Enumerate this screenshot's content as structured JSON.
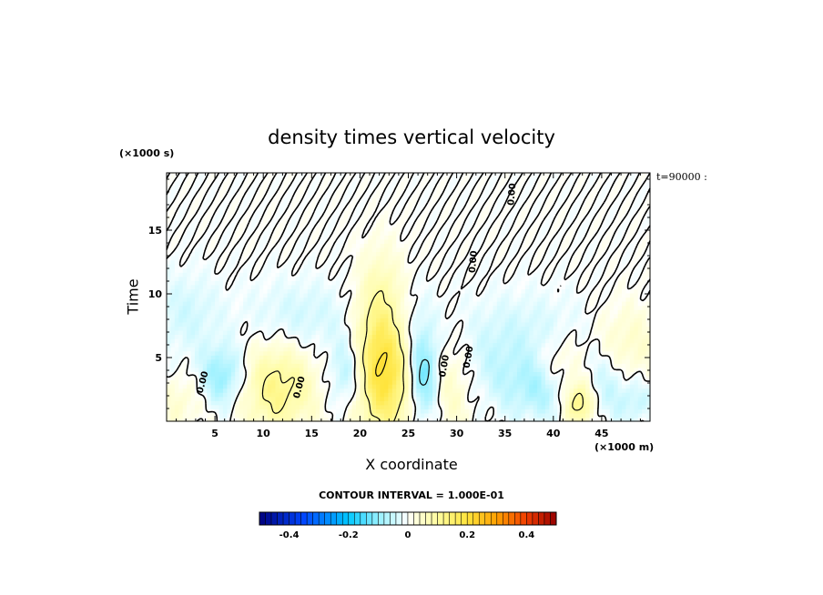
{
  "chart_data": {
    "type": "heatmap",
    "title": "density times vertical velocity",
    "xlabel": "X coordinate",
    "ylabel": "Time",
    "x_unit_label": "(×1000 m)",
    "y_unit_label": "(×1000 s)",
    "time_stamp": "t=90000 :",
    "xlim": [
      0,
      50
    ],
    "ylim": [
      0,
      19.5
    ],
    "x_ticks": [
      "5",
      "10",
      "15",
      "20",
      "25",
      "30",
      "35",
      "40",
      "45"
    ],
    "y_ticks": [
      "5",
      "10",
      "15"
    ],
    "contour_interval_label": "CONTOUR INTERVAL = 1.000E-01",
    "contour_labels": [
      {
        "text": "0.00",
        "x": 4,
        "y": 3.0,
        "angle": 75
      },
      {
        "text": "0.00",
        "x": 14,
        "y": 2.6,
        "angle": 75
      },
      {
        "text": "0.00",
        "x": 29,
        "y": 4.3,
        "angle": 80
      },
      {
        "text": "0.00",
        "x": 31.5,
        "y": 5.0,
        "angle": 80
      },
      {
        "text": "0.00",
        "x": 36,
        "y": 17.8,
        "angle": 85
      },
      {
        "text": "0.00",
        "x": 32,
        "y": 12.5,
        "angle": 85
      }
    ],
    "colorbar": {
      "min": -0.5,
      "max": 0.5,
      "step": 0.02,
      "tick_values": [
        -0.4,
        -0.2,
        0,
        0.2,
        0.4
      ],
      "tick_labels": [
        "-0.4",
        "-0.2",
        "0",
        "0.2",
        "0.4"
      ],
      "colormap": "blue-cyan-white-yellow-red"
    },
    "field_features": [
      {
        "x": 11.5,
        "y": 2.6,
        "sx": 2.6,
        "sy": 2.4,
        "value": 0.12
      },
      {
        "x": 22.5,
        "y": 3.8,
        "sx": 2.2,
        "sy": 3.4,
        "value": 0.2
      },
      {
        "x": 22.2,
        "y": 9.0,
        "sx": 1.6,
        "sy": 3.0,
        "value": 0.08
      },
      {
        "x": 5.8,
        "y": 3.6,
        "sx": 1.6,
        "sy": 1.6,
        "value": -0.1
      },
      {
        "x": 18.8,
        "y": 3.8,
        "sx": 1.3,
        "sy": 2.0,
        "value": -0.09
      },
      {
        "x": 26.5,
        "y": 3.6,
        "sx": 1.1,
        "sy": 2.4,
        "value": -0.15
      },
      {
        "x": 29.5,
        "y": 3.2,
        "sx": 2.0,
        "sy": 2.6,
        "value": 0.07
      },
      {
        "x": 33.5,
        "y": 4.0,
        "sx": 4.5,
        "sy": 2.2,
        "value": -0.05
      },
      {
        "x": 38.5,
        "y": 2.5,
        "sx": 2.0,
        "sy": 1.6,
        "value": -0.06
      },
      {
        "x": 42.7,
        "y": 1.4,
        "sx": 1.0,
        "sy": 1.2,
        "value": 0.14
      },
      {
        "x": 40.5,
        "y": 4.5,
        "sx": 1.6,
        "sy": 1.6,
        "value": 0.05
      },
      {
        "x": 47.5,
        "y": 6.0,
        "sx": 2.5,
        "sy": 2.2,
        "value": 0.05
      },
      {
        "x": 45.5,
        "y": 3.0,
        "sx": 1.6,
        "sy": 2.0,
        "value": -0.05
      },
      {
        "x": 2.0,
        "y": 8.5,
        "sx": 2.5,
        "sy": 2.2,
        "value": -0.04
      },
      {
        "x": 14.0,
        "y": 8.2,
        "sx": 4.0,
        "sy": 2.0,
        "value": -0.04
      },
      {
        "x": 24.5,
        "y": 7.8,
        "sx": 2.0,
        "sy": 2.2,
        "value": -0.04
      },
      {
        "x": 37.0,
        "y": 7.5,
        "sx": 5.0,
        "sy": 2.0,
        "value": -0.03
      },
      {
        "x": 1.5,
        "y": 1.5,
        "sx": 1.5,
        "sy": 1.5,
        "value": 0.04
      },
      {
        "x": 48.5,
        "y": 1.6,
        "sx": 1.2,
        "sy": 1.2,
        "value": -0.05
      }
    ]
  }
}
